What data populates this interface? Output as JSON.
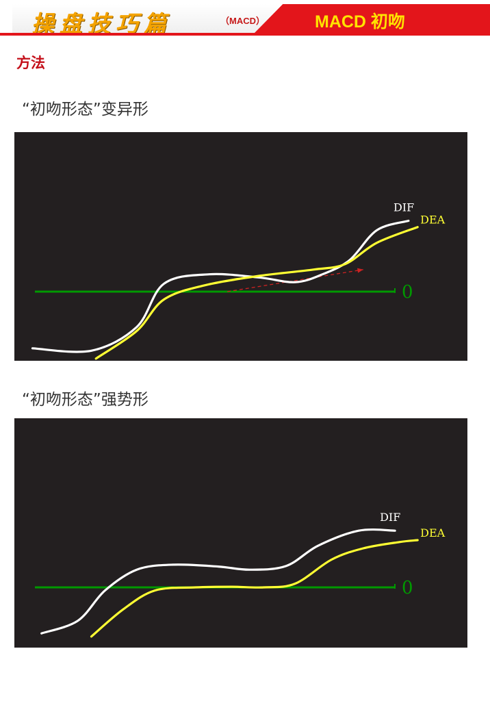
{
  "header": {
    "brand": "操盘技巧篇",
    "subtitle": "（MACD）",
    "title": "MACD 初吻"
  },
  "method_label": "方法",
  "sections": [
    {
      "title": "“初吻形态”变异形"
    },
    {
      "title": "“初吻形态”强势形"
    }
  ],
  "colors": {
    "header_red": "#e3151b",
    "title_yellow": "#ffe300",
    "brand_orange": "#f4a300",
    "panel_bg": "#231f20",
    "dif_line": "#ffffff",
    "dea_line": "#ffff33",
    "zero_line": "#009900",
    "arrow": "#cc2222"
  },
  "chart_data": [
    {
      "type": "line",
      "title": "",
      "zero_label": "0",
      "y_scale": [
        -10,
        10
      ],
      "x_range": [
        0,
        100
      ],
      "series": [
        {
          "name": "DIF",
          "points": [
            [
              4,
              -7.2
            ],
            [
              17,
              -7.5
            ],
            [
              27,
              -4.5
            ],
            [
              33,
              1.0
            ],
            [
              43,
              2.2
            ],
            [
              54,
              1.8
            ],
            [
              62,
              1.2
            ],
            [
              68,
              2.2
            ],
            [
              74,
              4.0
            ],
            [
              80,
              7.8
            ],
            [
              87,
              9.0
            ]
          ]
        },
        {
          "name": "DEA",
          "points": [
            [
              18,
              -8.5
            ],
            [
              27,
              -5.0
            ],
            [
              33,
              -1.0
            ],
            [
              42,
              0.8
            ],
            [
              54,
              2.0
            ],
            [
              66,
              2.8
            ],
            [
              73,
              3.5
            ],
            [
              80,
              6.2
            ],
            [
              89,
              8.2
            ]
          ]
        }
      ],
      "arrow": {
        "from": [
          47,
          0
        ],
        "to": [
          77,
          2.8
        ]
      }
    },
    {
      "type": "line",
      "title": "",
      "zero_label": "0",
      "y_scale": [
        -10,
        10
      ],
      "x_range": [
        0,
        100
      ],
      "series": [
        {
          "name": "DIF",
          "points": [
            [
              6,
              -7.3
            ],
            [
              14,
              -5.3
            ],
            [
              20,
              -0.5
            ],
            [
              27,
              2.8
            ],
            [
              35,
              3.6
            ],
            [
              45,
              3.3
            ],
            [
              52,
              2.8
            ],
            [
              60,
              3.4
            ],
            [
              67,
              6.6
            ],
            [
              76,
              9.0
            ],
            [
              84,
              9.0
            ]
          ]
        },
        {
          "name": "DEA",
          "points": [
            [
              17,
              -7.8
            ],
            [
              24,
              -3.5
            ],
            [
              31,
              -0.5
            ],
            [
              40,
              0.0
            ],
            [
              48,
              0.1
            ],
            [
              55,
              0.0
            ],
            [
              62,
              0.6
            ],
            [
              70,
              4.4
            ],
            [
              77,
              6.2
            ],
            [
              85,
              7.2
            ],
            [
              89,
              7.5
            ]
          ]
        }
      ]
    }
  ]
}
